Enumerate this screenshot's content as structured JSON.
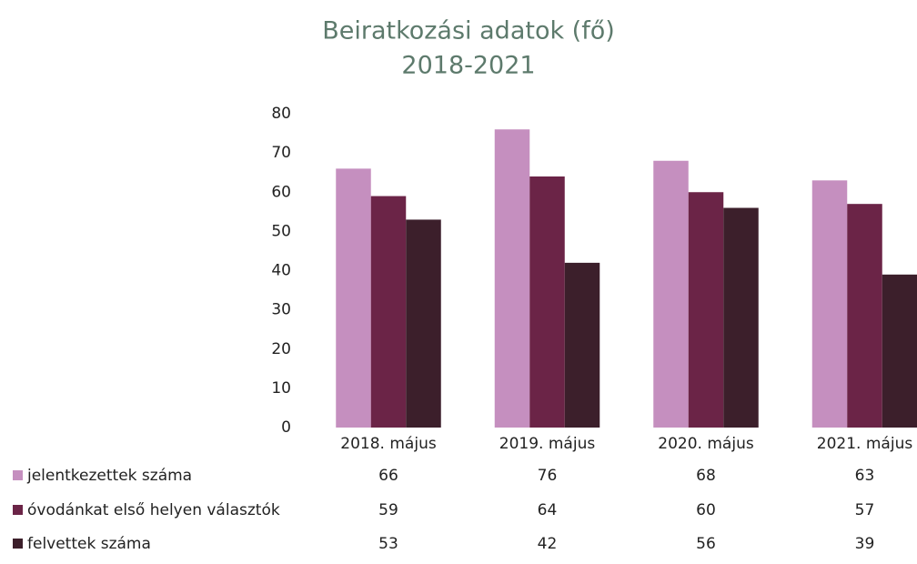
{
  "chart_data": {
    "type": "bar",
    "title": [
      "Beiratkozási adatok (fő)",
      "2018-2021"
    ],
    "categories": [
      "2018. május",
      "2019. május",
      "2020. május",
      "2021. május"
    ],
    "series": [
      {
        "name": "jelentkezettek száma",
        "color": "#c58fbf",
        "values": [
          66,
          76,
          68,
          63
        ]
      },
      {
        "name": "óvodánkat első helyen választók",
        "color": "#6b2447",
        "values": [
          59,
          64,
          60,
          57
        ]
      },
      {
        "name": "felvettek száma",
        "color": "#3c1f2b",
        "values": [
          53,
          42,
          56,
          39
        ]
      }
    ],
    "ylim": [
      0,
      80
    ],
    "yticks": [
      0,
      10,
      20,
      30,
      40,
      50,
      60,
      70,
      80
    ]
  }
}
